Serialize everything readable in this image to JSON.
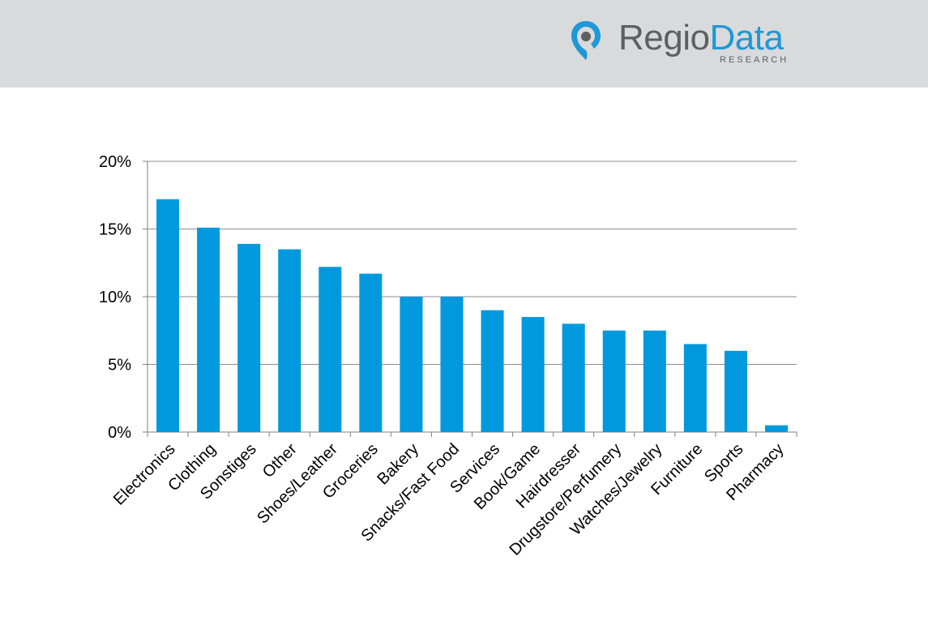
{
  "brand": {
    "name_part1": "Regio",
    "name_part2": "Data",
    "subtitle": "RESEARCH",
    "colors": {
      "gray": "#5d5f62",
      "blue": "#1e98d6",
      "header_bg": "#d9dadc"
    }
  },
  "chart_data": {
    "type": "bar",
    "categories": [
      "Electronics",
      "Clothing",
      "Sonstiges",
      "Other",
      "Shoes/Leather",
      "Groceries",
      "Bakery",
      "Snacks/Fast Food",
      "Services",
      "Book/Game",
      "Hairdresser",
      "Drugstore/Perfumery",
      "Watches/Jewelry",
      "Furniture",
      "Sports",
      "Pharmacy"
    ],
    "values": [
      17.2,
      15.1,
      13.9,
      13.5,
      12.2,
      11.7,
      10.0,
      10.0,
      9.0,
      8.5,
      8.0,
      7.5,
      7.5,
      6.5,
      6.0,
      0.5
    ],
    "value_unit": "%",
    "ylim": [
      0,
      20
    ],
    "y_ticks": [
      0,
      5,
      10,
      15,
      20
    ],
    "y_tick_labels": [
      "0%",
      "5%",
      "10%",
      "15%",
      "20%"
    ],
    "grid": true,
    "bar_color": "#0099dd",
    "title": "",
    "xlabel": "",
    "ylabel": ""
  }
}
